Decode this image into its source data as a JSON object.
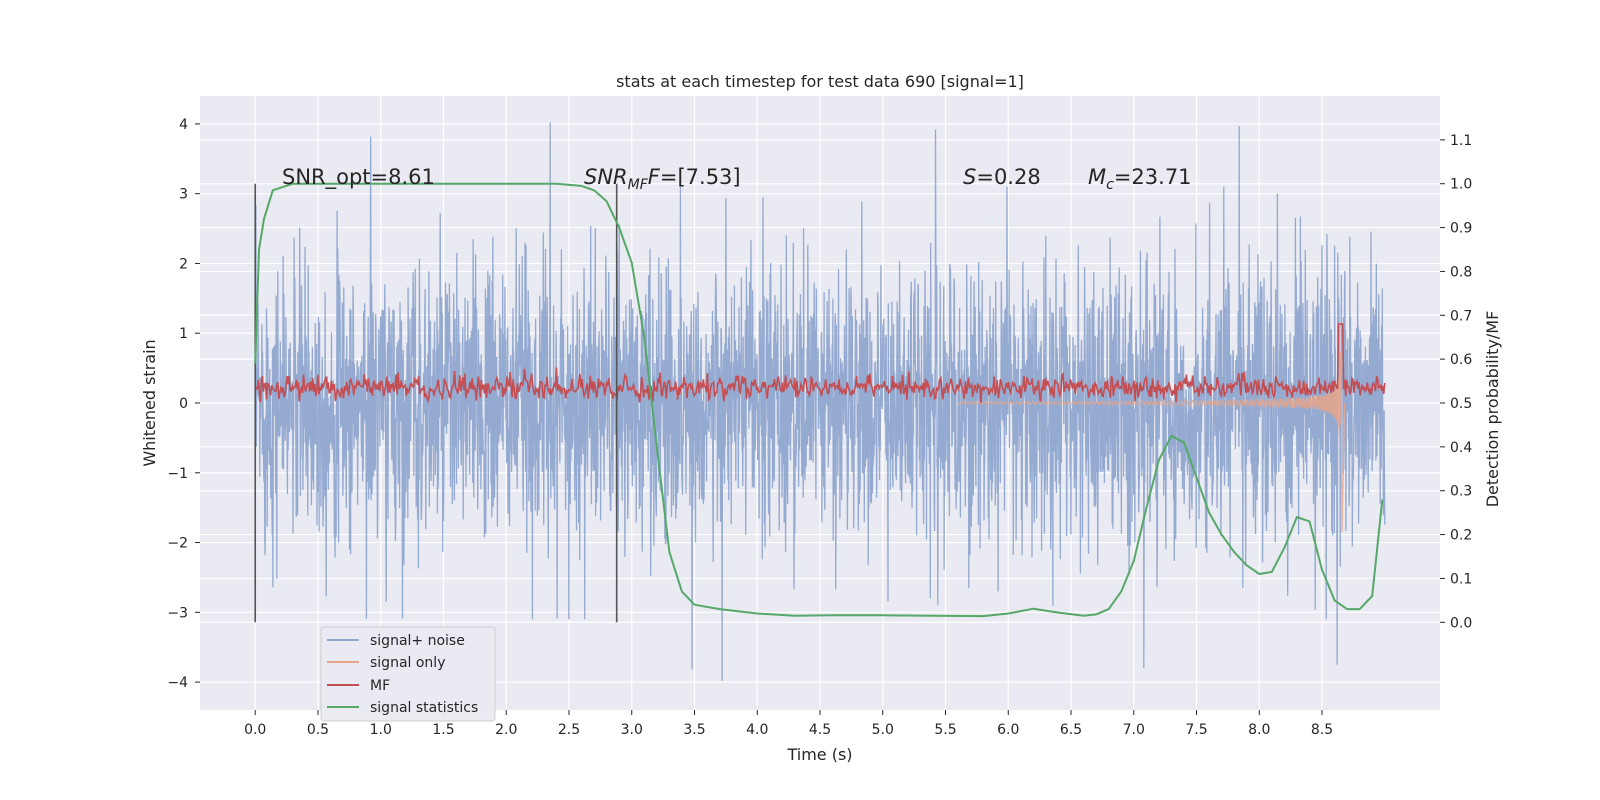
{
  "chart_data": {
    "type": "line",
    "title": "stats at each timestep for test data 690 [signal=1]",
    "xlabel": "Time (s)",
    "ylabel": "Whitened strain",
    "y2label": "Detection probability/MF",
    "xlim": [
      -0.44,
      9.44
    ],
    "ylim": [
      -4.4,
      4.4
    ],
    "y2lim": [
      -0.2,
      1.2
    ],
    "x_ticks": [
      "0.0",
      "0.5",
      "1.0",
      "1.5",
      "2.0",
      "2.5",
      "3.0",
      "3.5",
      "4.0",
      "4.5",
      "5.0",
      "5.5",
      "6.0",
      "6.5",
      "7.0",
      "7.5",
      "8.0",
      "8.5"
    ],
    "y_ticks": [
      "4",
      "3",
      "2",
      "1",
      "0",
      "−1",
      "−2",
      "−3",
      "−4"
    ],
    "y2_ticks": [
      "1.1",
      "1.0",
      "0.9",
      "0.8",
      "0.7",
      "0.6",
      "0.5",
      "0.4",
      "0.3",
      "0.2",
      "0.1",
      "0.0"
    ],
    "grid": true,
    "legend_position": "lower-left",
    "colors": {
      "background": "#eaeaf2",
      "grid": "#ffffff",
      "signal_noise": "#8fa6cf",
      "signal_only": "#e8a58a",
      "mf": "#c44e52",
      "signal_statistics": "#55a868",
      "marker": "#555555"
    },
    "markers_x": [
      0.0,
      2.88
    ],
    "annotations": {
      "snr_opt": "SNR_opt=8.61",
      "snr_mf_sym": "SNR",
      "snr_mf_sub": "MF",
      "snr_mf_val": "=[7.53]",
      "s_sym": "S",
      "s_val": "=0.28",
      "mc_sym": "M",
      "mc_sub": "c",
      "mc_val": "=23.71"
    },
    "series": [
      {
        "name": "signal+ noise",
        "axis": "left",
        "style": "noise band approx. ±2.5, spikes to ±4",
        "x_range": [
          0.0,
          9.0
        ],
        "envelope": [
          -2.6,
          2.6
        ],
        "peaks": [
          {
            "x": 0.92,
            "y": 3.82
          },
          {
            "x": 2.35,
            "y": 4.02
          },
          {
            "x": 5.42,
            "y": 3.92
          },
          {
            "x": 7.84,
            "y": 3.97
          },
          {
            "x": 3.48,
            "y": -3.82
          },
          {
            "x": 3.72,
            "y": -3.98
          },
          {
            "x": 7.08,
            "y": -3.8
          },
          {
            "x": 8.62,
            "y": -3.75
          }
        ]
      },
      {
        "name": "signal only",
        "axis": "left",
        "style": "chirp",
        "peak_time": 8.65,
        "peak_amplitude": 1.9
      },
      {
        "name": "MF",
        "axis": "right",
        "style": "noisy band between about 0.50 and 0.57, spike 0.68 at 8.65 s",
        "x_range": [
          0.0,
          9.0
        ],
        "baseline": 0.535
      },
      {
        "name": "signal statistics",
        "axis": "right",
        "x": [
          0.0,
          0.03,
          0.07,
          0.14,
          0.3,
          0.6,
          1.0,
          1.5,
          2.0,
          2.4,
          2.6,
          2.7,
          2.8,
          2.9,
          3.0,
          3.1,
          3.2,
          3.3,
          3.4,
          3.5,
          3.7,
          4.0,
          4.3,
          4.6,
          5.0,
          5.4,
          5.8,
          6.0,
          6.2,
          6.4,
          6.6,
          6.7,
          6.8,
          6.9,
          7.0,
          7.1,
          7.2,
          7.3,
          7.4,
          7.5,
          7.6,
          7.7,
          7.8,
          7.9,
          8.0,
          8.1,
          8.2,
          8.3,
          8.4,
          8.5,
          8.6,
          8.7,
          8.8,
          8.9,
          8.98
        ],
        "y": [
          0.59,
          0.85,
          0.92,
          0.985,
          1.0,
          1.0,
          1.0,
          1.0,
          1.0,
          1.0,
          0.995,
          0.985,
          0.96,
          0.9,
          0.82,
          0.65,
          0.4,
          0.16,
          0.07,
          0.04,
          0.03,
          0.02,
          0.015,
          0.016,
          0.016,
          0.015,
          0.014,
          0.02,
          0.031,
          0.022,
          0.015,
          0.018,
          0.03,
          0.07,
          0.14,
          0.26,
          0.37,
          0.425,
          0.41,
          0.33,
          0.25,
          0.2,
          0.16,
          0.13,
          0.11,
          0.115,
          0.17,
          0.24,
          0.23,
          0.12,
          0.05,
          0.03,
          0.03,
          0.06,
          0.28
        ]
      }
    ]
  }
}
